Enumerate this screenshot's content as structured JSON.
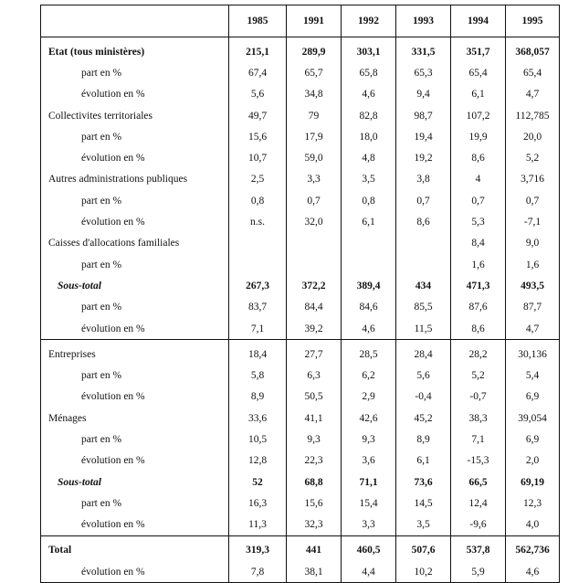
{
  "columns": [
    "",
    "1985",
    "1991",
    "1992",
    "1993",
    "1994",
    "1995"
  ],
  "groups": [
    {
      "rows": [
        {
          "label": "Etat    (tous ministères)",
          "level": 0,
          "bold": true,
          "values": [
            "215,1",
            "289,9",
            "303,1",
            "331,5",
            "351,7",
            "368,057"
          ]
        },
        {
          "label": "part en %",
          "level": 1,
          "values": [
            "67,4",
            "65,7",
            "65,8",
            "65,3",
            "65,4",
            "65,4"
          ]
        },
        {
          "label": "évolution en %",
          "level": 1,
          "values": [
            "5,6",
            "34,8",
            "4,6",
            "9,4",
            "6,1",
            "4,7"
          ]
        },
        {
          "label": "Collectivites territoriales",
          "level": 0,
          "values": [
            "49,7",
            "79",
            "82,8",
            "98,7",
            "107,2",
            "112,785"
          ]
        },
        {
          "label": "part en %",
          "level": 1,
          "values": [
            "15,6",
            "17,9",
            "18,0",
            "19,4",
            "19,9",
            "20,0"
          ]
        },
        {
          "label": "évolution en %",
          "level": 1,
          "values": [
            "10,7",
            "59,0",
            "4,8",
            "19,2",
            "8,6",
            "5,2"
          ]
        },
        {
          "label": "Autres administrations publiques",
          "level": 0,
          "values": [
            "2,5",
            "3,3",
            "3,5",
            "3,8",
            "4",
            "3,716"
          ]
        },
        {
          "label": "part en %",
          "level": 1,
          "values": [
            "0,8",
            "0,7",
            "0,8",
            "0,7",
            "0,7",
            "0,7"
          ]
        },
        {
          "label": "évolution en %",
          "level": 1,
          "values": [
            "n.s.",
            "32,0",
            "6,1",
            "8,6",
            "5,3",
            "-7,1"
          ]
        },
        {
          "label": "Caisses d'allocations familiales",
          "level": 0,
          "values": [
            "",
            "",
            "",
            "",
            "8,4",
            "9,0"
          ]
        },
        {
          "label": "part en %",
          "level": 1,
          "values": [
            "",
            "",
            "",
            "",
            "1,6",
            "1,6"
          ]
        },
        {
          "label": "Sous-total",
          "level": 2,
          "bold": true,
          "values": [
            "267,3",
            "372,2",
            "389,4",
            "434",
            "471,3",
            "493,5"
          ]
        },
        {
          "label": "part en %",
          "level": 1,
          "values": [
            "83,7",
            "84,4",
            "84,6",
            "85,5",
            "87,6",
            "87,7"
          ]
        },
        {
          "label": "évolution en %",
          "level": 1,
          "values": [
            "7,1",
            "39,2",
            "4,6",
            "11,5",
            "8,6",
            "4,7"
          ]
        }
      ]
    },
    {
      "rows": [
        {
          "label": "Entreprises",
          "level": 0,
          "values": [
            "18,4",
            "27,7",
            "28,5",
            "28,4",
            "28,2",
            "30,136"
          ]
        },
        {
          "label": "part en %",
          "level": 1,
          "values": [
            "5,8",
            "6,3",
            "6,2",
            "5,6",
            "5,2",
            "5,4"
          ]
        },
        {
          "label": "évolution en %",
          "level": 1,
          "values": [
            "8,9",
            "50,5",
            "2,9",
            "-0,4",
            "-0,7",
            "6,9"
          ]
        },
        {
          "label": "Ménages",
          "level": 0,
          "values": [
            "33,6",
            "41,1",
            "42,6",
            "45,2",
            "38,3",
            "39,054"
          ]
        },
        {
          "label": "part en %",
          "level": 1,
          "values": [
            "10,5",
            "9,3",
            "9,3",
            "8,9",
            "7,1",
            "6,9"
          ]
        },
        {
          "label": "évolution en %",
          "level": 1,
          "values": [
            "12,8",
            "22,3",
            "3,6",
            "6,1",
            "-15,3",
            "2,0"
          ]
        },
        {
          "label": "Sous-total",
          "level": 2,
          "bold": true,
          "values": [
            "52",
            "68,8",
            "71,1",
            "73,6",
            "66,5",
            "69,19"
          ]
        },
        {
          "label": "part en %",
          "level": 1,
          "values": [
            "16,3",
            "15,6",
            "15,4",
            "14,5",
            "12,4",
            "12,3"
          ]
        },
        {
          "label": "évolution en %",
          "level": 1,
          "values": [
            "11,3",
            "32,3",
            "3,3",
            "3,5",
            "-9,6",
            "4,0"
          ]
        }
      ]
    },
    {
      "rows": [
        {
          "label": "Total",
          "level": 0,
          "bold": true,
          "values": [
            "319,3",
            "441",
            "460,5",
            "507,6",
            "537,8",
            "562,736"
          ]
        },
        {
          "label": "évolution en %",
          "level": 1,
          "values": [
            "7,8",
            "38,1",
            "4,4",
            "10,2",
            "5,9",
            "4,6"
          ]
        }
      ]
    }
  ]
}
